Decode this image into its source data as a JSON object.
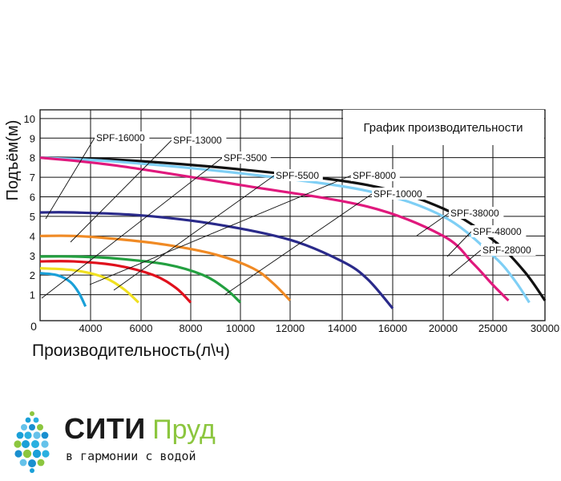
{
  "chart_data": {
    "type": "line",
    "title": "График производительности",
    "xlabel": "Производительность(л\\ч)",
    "ylabel": "Подъём(м)",
    "xlim": [
      1000,
      30000
    ],
    "ylim": [
      0,
      10
    ],
    "x_ticks": [
      "4000",
      "6000",
      "8000",
      "10000",
      "12000",
      "14000",
      "16000",
      "20000",
      "25000",
      "30000"
    ],
    "y_ticks": [
      "1",
      "2",
      "3",
      "4",
      "5",
      "6",
      "7",
      "8",
      "9",
      "10"
    ],
    "origin_label": "0",
    "grid": true,
    "series": [
      {
        "name": "SPF-16000",
        "color": "#2a2a8a",
        "values": [
          [
            1000,
            5.2
          ],
          [
            3000,
            5.2
          ],
          [
            6000,
            5.05
          ],
          [
            9000,
            4.6
          ],
          [
            12000,
            3.8
          ],
          [
            14000,
            2.7
          ],
          [
            15000,
            1.8
          ],
          [
            16000,
            0.3
          ]
        ]
      },
      {
        "name": "SPF-13000",
        "color": "#f08a24",
        "values": [
          [
            1000,
            4.0
          ],
          [
            3000,
            4.0
          ],
          [
            5000,
            3.85
          ],
          [
            7000,
            3.55
          ],
          [
            9000,
            3.05
          ],
          [
            10500,
            2.35
          ],
          [
            11300,
            1.6
          ],
          [
            12000,
            0.7
          ]
        ]
      },
      {
        "name": "SPF-3500",
        "color": "#1aa0d8",
        "values": [
          [
            1000,
            2.1
          ],
          [
            2000,
            2.0
          ],
          [
            2800,
            1.65
          ],
          [
            3300,
            1.1
          ],
          [
            3700,
            0.4
          ]
        ]
      },
      {
        "name": "SPF-5500",
        "color": "#f0e020",
        "values": [
          [
            1000,
            2.35
          ],
          [
            3000,
            2.25
          ],
          [
            4500,
            1.9
          ],
          [
            5300,
            1.3
          ],
          [
            5900,
            0.6
          ]
        ]
      },
      {
        "name": "SPF-8000",
        "color": "#e0101c",
        "values": [
          [
            1000,
            2.7
          ],
          [
            3000,
            2.7
          ],
          [
            5000,
            2.5
          ],
          [
            6500,
            2.0
          ],
          [
            7400,
            1.35
          ],
          [
            8000,
            0.6
          ]
        ]
      },
      {
        "name": "SPF-10000",
        "color": "#23a040",
        "values": [
          [
            1000,
            2.95
          ],
          [
            3000,
            2.95
          ],
          [
            5000,
            2.85
          ],
          [
            7000,
            2.55
          ],
          [
            8500,
            2.0
          ],
          [
            9400,
            1.3
          ],
          [
            10000,
            0.6
          ]
        ]
      },
      {
        "name": "SPF-38000",
        "color": "#111111",
        "values": [
          [
            1000,
            8.0
          ],
          [
            5000,
            7.9
          ],
          [
            10000,
            7.4
          ],
          [
            15000,
            6.6
          ],
          [
            20000,
            5.4
          ],
          [
            25000,
            3.8
          ],
          [
            28000,
            2.2
          ],
          [
            30000,
            0.7
          ]
        ]
      },
      {
        "name": "SPF-48000",
        "color": "#7fcff5",
        "values": [
          [
            1000,
            8.0
          ],
          [
            5000,
            7.8
          ],
          [
            10000,
            7.2
          ],
          [
            15000,
            6.3
          ],
          [
            20000,
            5.0
          ],
          [
            25000,
            3.0
          ],
          [
            27000,
            1.8
          ],
          [
            28500,
            0.6
          ]
        ]
      },
      {
        "name": "SPF-28000",
        "color": "#e0197d",
        "values": [
          [
            1000,
            8.0
          ],
          [
            5000,
            7.6
          ],
          [
            10000,
            6.6
          ],
          [
            15000,
            5.5
          ],
          [
            20000,
            4.0
          ],
          [
            23000,
            2.6
          ],
          [
            25000,
            1.5
          ],
          [
            26500,
            0.7
          ]
        ]
      }
    ]
  },
  "brand": {
    "name_main": "СИТИ",
    "name_sub": "Пруд",
    "tagline": "в гармонии с водой",
    "accent_color": "#8cc63f",
    "drop_color": "#1aa0d8"
  }
}
